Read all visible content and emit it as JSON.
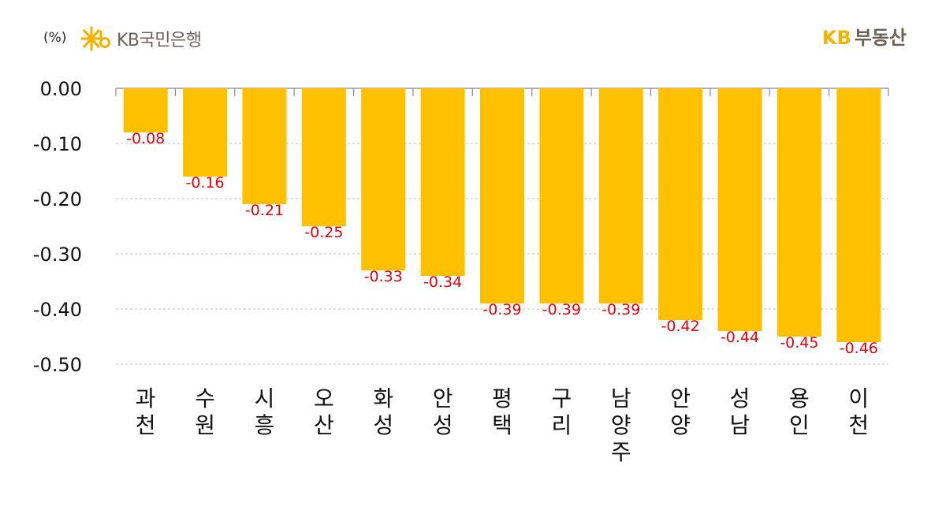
{
  "header": {
    "unit": "(%)",
    "bank_brand": "KB국민은행",
    "estate_kb": "KB",
    "estate_text": "부동산"
  },
  "colors": {
    "bar": "#ffc000",
    "data_label": "#e8000b",
    "grid": "#bfbfbf",
    "logo_star": "#f2b300"
  },
  "icons": {
    "bank_logo": "kb-star-icon"
  },
  "chart_data": {
    "type": "bar",
    "categories": [
      "과천",
      "수원",
      "시흥",
      "오산",
      "화성",
      "안성",
      "평택",
      "구리",
      "남양주",
      "안양",
      "성남",
      "용인",
      "이천"
    ],
    "values": [
      -0.08,
      -0.16,
      -0.21,
      -0.25,
      -0.33,
      -0.34,
      -0.39,
      -0.39,
      -0.39,
      -0.42,
      -0.44,
      -0.45,
      -0.46
    ],
    "data_labels": [
      "-0.08",
      "-0.16",
      "-0.21",
      "-0.25",
      "-0.33",
      "-0.34",
      "-0.39",
      "-0.39",
      "-0.39",
      "-0.42",
      "-0.44",
      "-0.45",
      "-0.46"
    ],
    "yticks": [
      "0.00",
      "-0.10",
      "-0.20",
      "-0.30",
      "-0.40",
      "-0.50"
    ],
    "ylim": [
      -0.5,
      0
    ],
    "ylabel": "(%)",
    "xlabel": "",
    "title": "",
    "grid": "horizontal dashed",
    "legend": "none"
  }
}
